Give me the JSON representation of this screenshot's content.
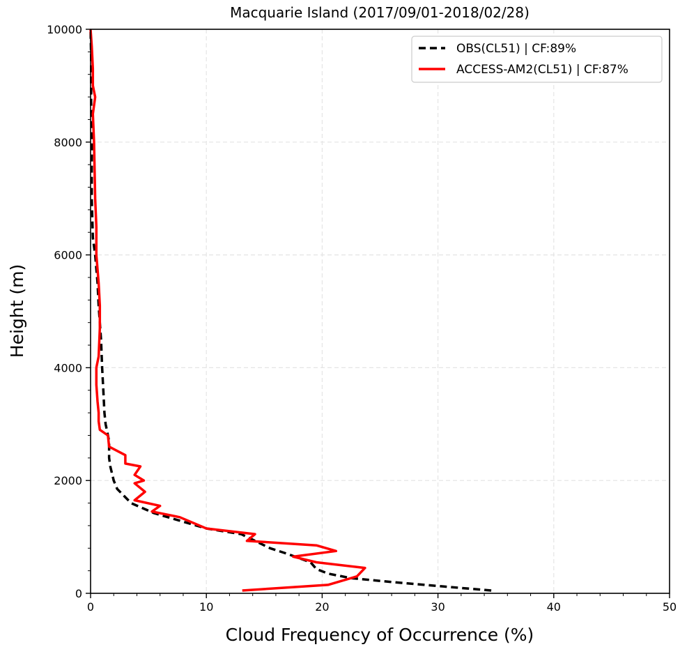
{
  "chart_data": {
    "type": "line",
    "title": "Macquarie Island (2017/09/01-2018/02/28)",
    "xlabel": "Cloud Frequency of Occurrence (%)",
    "ylabel": "Height (m)",
    "xlim": [
      0,
      50
    ],
    "ylim": [
      0,
      10000
    ],
    "xticks": [
      "0",
      "10",
      "20",
      "30",
      "40",
      "50"
    ],
    "yticks": [
      "0",
      "2000",
      "4000",
      "6000",
      "8000",
      "10000"
    ],
    "grid": true,
    "legend_position": "top-right",
    "series": [
      {
        "name": "OBS(CL51) | CF:89%",
        "color": "#000000",
        "style": "dashed",
        "points": [
          [
            34.6,
            50
          ],
          [
            30.0,
            130
          ],
          [
            26.0,
            200
          ],
          [
            22.5,
            270
          ],
          [
            20.5,
            350
          ],
          [
            19.5,
            430
          ],
          [
            19.0,
            550
          ],
          [
            17.0,
            700
          ],
          [
            15.5,
            800
          ],
          [
            14.0,
            950
          ],
          [
            13.0,
            1050
          ],
          [
            10.0,
            1150
          ],
          [
            7.5,
            1300
          ],
          [
            5.5,
            1420
          ],
          [
            3.5,
            1600
          ],
          [
            2.3,
            1850
          ],
          [
            2.0,
            2000
          ],
          [
            1.7,
            2250
          ],
          [
            1.6,
            2400
          ],
          [
            1.6,
            2700
          ],
          [
            1.3,
            3000
          ],
          [
            1.2,
            3200
          ],
          [
            1.1,
            3600
          ],
          [
            1.0,
            4000
          ],
          [
            0.9,
            4500
          ],
          [
            0.7,
            5100
          ],
          [
            0.6,
            5500
          ],
          [
            0.4,
            6000
          ],
          [
            0.2,
            6300
          ],
          [
            0.1,
            7000
          ],
          [
            0.1,
            8000
          ],
          [
            0.05,
            8700
          ],
          [
            0.05,
            9500
          ],
          [
            0.0,
            10000
          ]
        ]
      },
      {
        "name": "ACCESS-AM2(CL51) | CF:87%",
        "color": "#ff0000",
        "style": "solid",
        "points": [
          [
            13.1,
            50
          ],
          [
            20.5,
            150
          ],
          [
            23.0,
            300
          ],
          [
            23.7,
            450
          ],
          [
            19.5,
            550
          ],
          [
            17.5,
            650
          ],
          [
            21.2,
            750
          ],
          [
            19.5,
            850
          ],
          [
            14.3,
            920
          ],
          [
            13.5,
            930
          ],
          [
            14.2,
            1050
          ],
          [
            10.0,
            1150
          ],
          [
            7.7,
            1350
          ],
          [
            5.3,
            1450
          ],
          [
            6.0,
            1550
          ],
          [
            3.8,
            1650
          ],
          [
            4.7,
            1800
          ],
          [
            3.8,
            1950
          ],
          [
            4.6,
            2000
          ],
          [
            3.8,
            2100
          ],
          [
            4.3,
            2250
          ],
          [
            3.0,
            2300
          ],
          [
            3.0,
            2450
          ],
          [
            1.6,
            2600
          ],
          [
            1.5,
            2800
          ],
          [
            0.8,
            2900
          ],
          [
            0.7,
            3050
          ],
          [
            0.7,
            3200
          ],
          [
            0.6,
            3400
          ],
          [
            0.5,
            3700
          ],
          [
            0.5,
            4000
          ],
          [
            0.7,
            4200
          ],
          [
            0.8,
            4700
          ],
          [
            0.8,
            5100
          ],
          [
            0.7,
            5500
          ],
          [
            0.5,
            6000
          ],
          [
            0.5,
            6500
          ],
          [
            0.4,
            7000
          ],
          [
            0.3,
            8000
          ],
          [
            0.2,
            8500
          ],
          [
            0.4,
            8800
          ],
          [
            0.2,
            9000
          ],
          [
            0.2,
            9300
          ],
          [
            0.1,
            9700
          ],
          [
            0.0,
            10000
          ]
        ]
      }
    ]
  }
}
